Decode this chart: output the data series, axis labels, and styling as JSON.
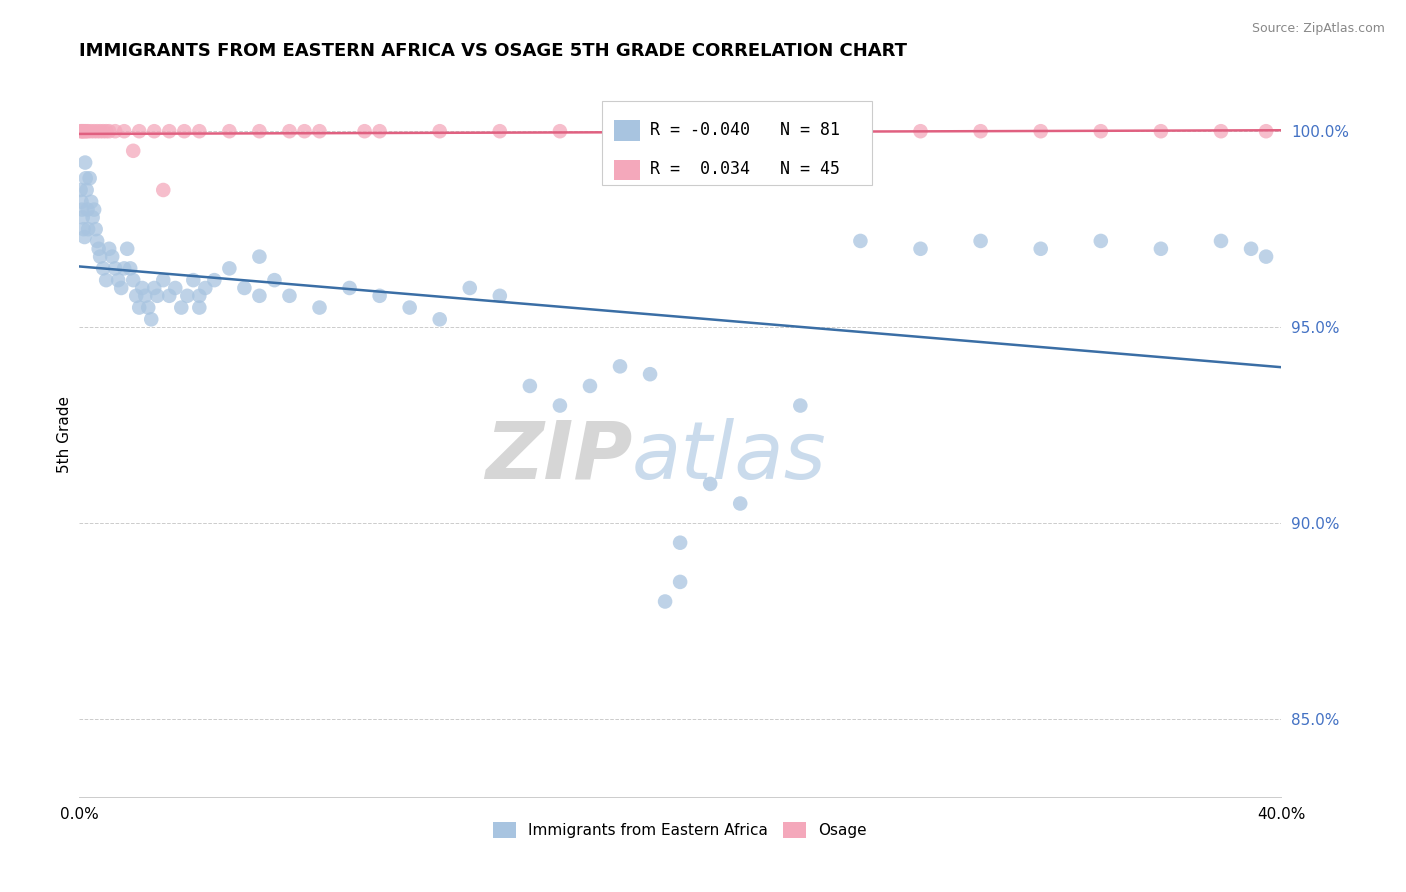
{
  "title": "IMMIGRANTS FROM EASTERN AFRICA VS OSAGE 5TH GRADE CORRELATION CHART",
  "source": "Source: ZipAtlas.com",
  "ylabel": "5th Grade",
  "xlim": [
    0.0,
    40.0
  ],
  "ylim": [
    83.0,
    101.5
  ],
  "yticks": [
    85.0,
    90.0,
    95.0,
    100.0
  ],
  "ytick_labels": [
    "85.0%",
    "90.0%",
    "95.0%",
    "100.0%"
  ],
  "blue_r": "-0.040",
  "blue_n": "81",
  "pink_r": "0.034",
  "pink_n": "45",
  "blue_color": "#a8c4e0",
  "pink_color": "#f4a8bb",
  "blue_line_color": "#3a6ea5",
  "pink_line_color": "#e06080",
  "ytick_color": "#4472c4",
  "legend_blue_label": "Immigrants from Eastern Africa",
  "legend_pink_label": "Osage",
  "watermark_zip": "ZIP",
  "watermark_atlas": "atlas",
  "blue_scatter_x": [
    0.05,
    0.08,
    0.1,
    0.12,
    0.15,
    0.18,
    0.2,
    0.22,
    0.25,
    0.28,
    0.3,
    0.35,
    0.4,
    0.45,
    0.5,
    0.55,
    0.6,
    0.65,
    0.7,
    0.8,
    0.9,
    1.0,
    1.1,
    1.2,
    1.3,
    1.4,
    1.5,
    1.6,
    1.7,
    1.8,
    1.9,
    2.0,
    2.1,
    2.2,
    2.3,
    2.4,
    2.5,
    2.6,
    2.8,
    3.0,
    3.2,
    3.4,
    3.6,
    3.8,
    4.0,
    4.2,
    4.5,
    5.0,
    5.5,
    6.0,
    6.5,
    7.0,
    8.0,
    9.0,
    10.0,
    11.0,
    12.0,
    13.0,
    14.0,
    15.0,
    16.0,
    17.0,
    18.0,
    19.0,
    20.0,
    21.0,
    22.0,
    24.0,
    26.0,
    28.0,
    30.0,
    32.0,
    34.0,
    36.0,
    38.0,
    39.0,
    39.5,
    4.0,
    6.0,
    20.0,
    19.5
  ],
  "blue_scatter_y": [
    98.5,
    98.2,
    98.0,
    97.8,
    97.5,
    97.3,
    99.2,
    98.8,
    98.5,
    98.0,
    97.5,
    98.8,
    98.2,
    97.8,
    98.0,
    97.5,
    97.2,
    97.0,
    96.8,
    96.5,
    96.2,
    97.0,
    96.8,
    96.5,
    96.2,
    96.0,
    96.5,
    97.0,
    96.5,
    96.2,
    95.8,
    95.5,
    96.0,
    95.8,
    95.5,
    95.2,
    96.0,
    95.8,
    96.2,
    95.8,
    96.0,
    95.5,
    95.8,
    96.2,
    95.8,
    96.0,
    96.2,
    96.5,
    96.0,
    95.8,
    96.2,
    95.8,
    95.5,
    96.0,
    95.8,
    95.5,
    95.2,
    96.0,
    95.8,
    93.5,
    93.0,
    93.5,
    94.0,
    93.8,
    88.5,
    91.0,
    90.5,
    93.0,
    97.2,
    97.0,
    97.2,
    97.0,
    97.2,
    97.0,
    97.2,
    97.0,
    96.8,
    95.5,
    96.8,
    89.5,
    88.0
  ],
  "pink_scatter_x": [
    0.05,
    0.08,
    0.12,
    0.15,
    0.2,
    0.25,
    0.3,
    0.4,
    0.5,
    0.6,
    0.7,
    0.8,
    0.9,
    1.0,
    1.2,
    1.5,
    1.8,
    2.0,
    2.5,
    3.0,
    3.5,
    4.0,
    5.0,
    6.0,
    7.0,
    8.0,
    9.5,
    10.0,
    12.0,
    14.0,
    16.0,
    18.0,
    20.0,
    22.0,
    24.0,
    26.0,
    28.0,
    30.0,
    32.0,
    34.0,
    36.0,
    38.0,
    39.5,
    2.8,
    7.5
  ],
  "pink_scatter_y": [
    100.0,
    100.0,
    100.0,
    100.0,
    100.0,
    100.0,
    100.0,
    100.0,
    100.0,
    100.0,
    100.0,
    100.0,
    100.0,
    100.0,
    100.0,
    100.0,
    99.5,
    100.0,
    100.0,
    100.0,
    100.0,
    100.0,
    100.0,
    100.0,
    100.0,
    100.0,
    100.0,
    100.0,
    100.0,
    100.0,
    100.0,
    100.0,
    100.0,
    100.0,
    100.0,
    100.0,
    100.0,
    100.0,
    100.0,
    100.0,
    100.0,
    100.0,
    100.0,
    98.5,
    100.0
  ]
}
